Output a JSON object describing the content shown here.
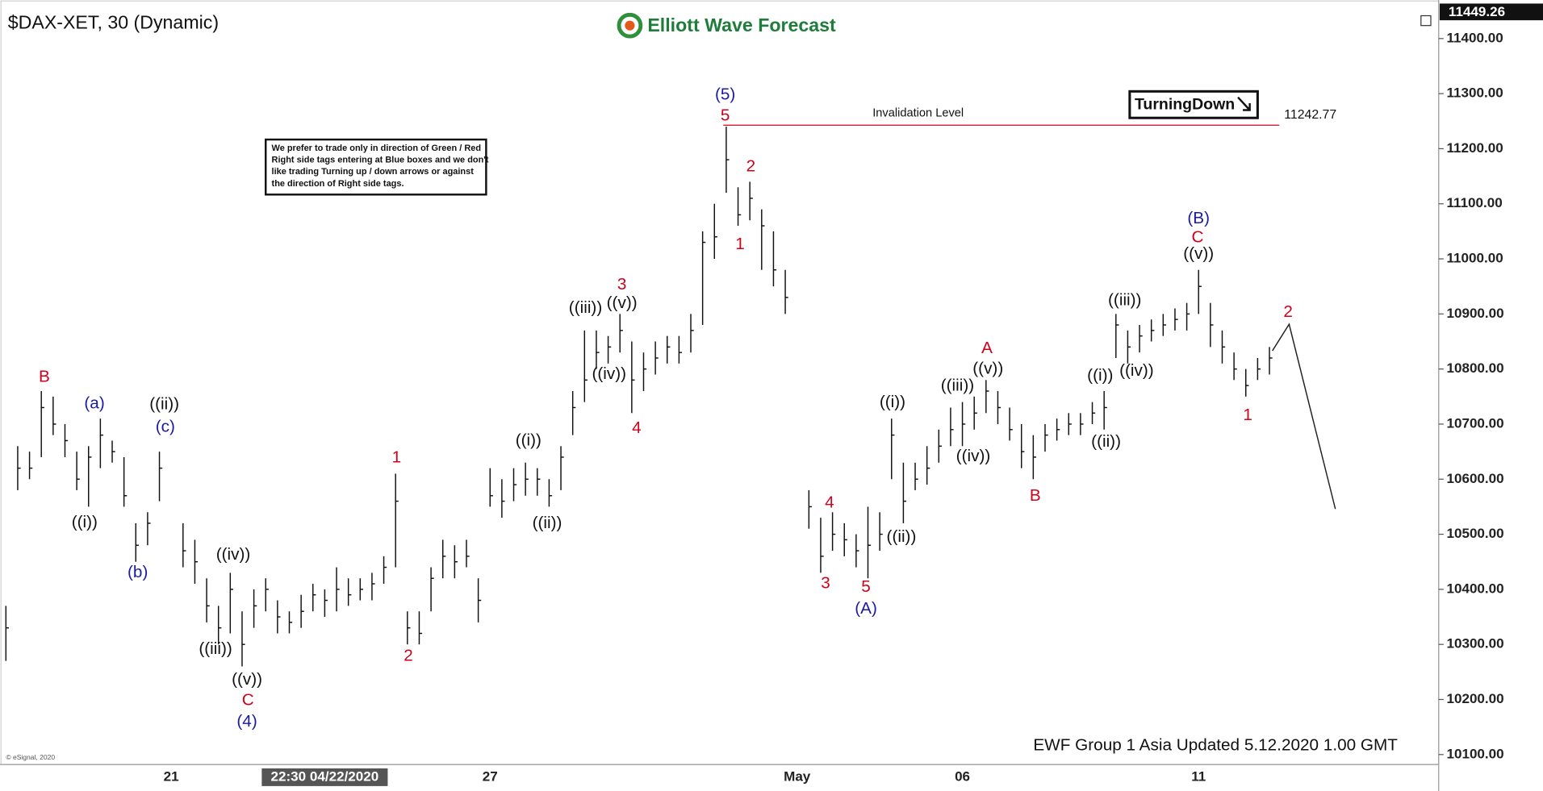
{
  "chart_data": {
    "type": "ohlc",
    "title": "$DAX-XET, 30 (Dynamic)",
    "brand": "Elliott Wave Forecast",
    "note": [
      "We prefer to trade only in direction of Green / Red",
      "Right side tags entering at Blue boxes and we don't",
      "like trading Turning up / down arrows or against",
      "the direction of Right side tags."
    ],
    "signal": "TurningDown",
    "footer": "EWF Group 1 Asia Updated 5.12.2020 1.00 GMT",
    "copyright": "© eSignal, 2020",
    "crosshair_label": "22:30 04/22/2020",
    "last_price": 11449.26,
    "invalidation_label": "Invalidation Level",
    "invalidation_level": 11242.77,
    "color": "#111111",
    "ylim": [
      10082,
      11470
    ],
    "yticks": [
      {
        "value": 11400,
        "label": "11400.00"
      },
      {
        "value": 11300,
        "label": "11300.00"
      },
      {
        "value": 11200,
        "label": "11200.00"
      },
      {
        "value": 11100,
        "label": "11100.00"
      },
      {
        "value": 11000,
        "label": "11000.00"
      },
      {
        "value": 10900,
        "label": "10900.00"
      },
      {
        "value": 10800,
        "label": "10800.00"
      },
      {
        "value": 10700,
        "label": "10700.00"
      },
      {
        "value": 10600,
        "label": "10600.00"
      },
      {
        "value": 10500,
        "label": "10500.00"
      },
      {
        "value": 10400,
        "label": "10400.00"
      },
      {
        "value": 10300,
        "label": "10300.00"
      },
      {
        "value": 10200,
        "label": "10200.00"
      },
      {
        "value": 10100,
        "label": "10100.00"
      }
    ],
    "categories": [
      null,
      null,
      null,
      null,
      null,
      null,
      null,
      null,
      null,
      null,
      null,
      null,
      null,
      null,
      "21",
      null,
      null,
      null,
      null,
      null,
      null,
      null,
      null,
      null,
      null,
      null,
      null,
      null,
      null,
      null,
      null,
      null,
      null,
      null,
      null,
      null,
      null,
      null,
      null,
      null,
      null,
      "27",
      null,
      null,
      null,
      null,
      null,
      null,
      null,
      null,
      null,
      null,
      null,
      null,
      null,
      null,
      null,
      null,
      null,
      null,
      null,
      null,
      null,
      null,
      null,
      null,
      null,
      "May",
      null,
      null,
      null,
      null,
      null,
      null,
      null,
      null,
      null,
      null,
      null,
      null,
      null,
      "06",
      null,
      null,
      null,
      null,
      null,
      null,
      null,
      null,
      null,
      null,
      null,
      null,
      null,
      null,
      null,
      null,
      null,
      null,
      null,
      "11",
      null,
      null,
      null,
      null,
      null,
      null
    ],
    "high": [
      10370,
      10660,
      10650,
      10760,
      10750,
      10700,
      10650,
      10660,
      10710,
      10670,
      10640,
      10520,
      10540,
      10650,
      null,
      10520,
      10490,
      10420,
      10370,
      10430,
      10360,
      10400,
      10420,
      10380,
      10360,
      10390,
      10410,
      10400,
      10440,
      10420,
      10420,
      10430,
      10460,
      10610,
      10360,
      10360,
      10440,
      10490,
      10480,
      10490,
      10420,
      10620,
      10600,
      10620,
      10630,
      10620,
      10600,
      10660,
      10760,
      10870,
      10870,
      10860,
      10900,
      10850,
      10830,
      10850,
      10860,
      10860,
      10900,
      11050,
      11100,
      11240,
      11130,
      11140,
      11090,
      11050,
      10980,
      null,
      10580,
      10530,
      10540,
      10520,
      10500,
      10550,
      10540,
      10710,
      10630,
      10630,
      10660,
      10690,
      10730,
      10740,
      10750,
      10780,
      10760,
      10730,
      10700,
      10680,
      10700,
      10710,
      10720,
      10720,
      10740,
      10760,
      10900,
      10870,
      10880,
      10890,
      10900,
      10910,
      10920,
      10980,
      10920,
      10870,
      10830,
      10800,
      10820,
      10840
    ],
    "low": [
      10270,
      10580,
      10600,
      10640,
      10680,
      10640,
      10580,
      10550,
      10620,
      10630,
      10550,
      10450,
      10480,
      10560,
      null,
      10440,
      10410,
      10340,
      10300,
      10320,
      10260,
      10330,
      10360,
      10320,
      10320,
      10330,
      10360,
      10350,
      10360,
      10370,
      10380,
      10380,
      10410,
      10440,
      10300,
      10300,
      10360,
      10420,
      10420,
      10440,
      10340,
      10550,
      10530,
      10560,
      10570,
      10570,
      10550,
      10580,
      10680,
      10740,
      10800,
      10810,
      10830,
      10720,
      10760,
      10790,
      10810,
      10810,
      10830,
      10880,
      11000,
      11120,
      11060,
      11070,
      10980,
      10950,
      10900,
      null,
      10510,
      10430,
      10470,
      10460,
      10440,
      10420,
      10470,
      10600,
      10520,
      10580,
      10590,
      10630,
      10660,
      10660,
      10690,
      10720,
      10700,
      10670,
      10620,
      10600,
      10650,
      10670,
      10680,
      10680,
      10700,
      10690,
      10820,
      10810,
      10830,
      10850,
      10860,
      10870,
      10870,
      10900,
      10840,
      10810,
      10780,
      10750,
      10780,
      10790
    ],
    "close": [
      10330,
      10620,
      10620,
      10730,
      10700,
      10670,
      10600,
      10640,
      10680,
      10650,
      10570,
      10480,
      10520,
      10620,
      null,
      10470,
      10450,
      10370,
      10330,
      10400,
      10300,
      10370,
      10400,
      10350,
      10340,
      10360,
      10390,
      10380,
      10400,
      10390,
      10400,
      10410,
      10440,
      10560,
      10330,
      10320,
      10420,
      10460,
      10450,
      10460,
      10380,
      10570,
      10560,
      10590,
      10600,
      10600,
      10570,
      10640,
      10730,
      10780,
      10830,
      10840,
      10870,
      10780,
      10800,
      10820,
      10840,
      10830,
      10870,
      11030,
      11040,
      11180,
      11080,
      11110,
      11060,
      10980,
      10930,
      null,
      10550,
      10460,
      10500,
      10490,
      10470,
      10480,
      10500,
      10680,
      10560,
      10600,
      10620,
      10660,
      10690,
      10700,
      10720,
      10760,
      10730,
      10690,
      10650,
      10640,
      10680,
      10690,
      10700,
      10700,
      10720,
      10730,
      10880,
      10840,
      10860,
      10870,
      10880,
      10890,
      10900,
      10950,
      10880,
      10840,
      10800,
      10770,
      10800,
      10820
    ],
    "annotations": [
      {
        "text": "B",
        "color": "#d0021b"
      },
      {
        "text": "(a)",
        "color": "#1a1aa6"
      },
      {
        "text": "((ii))",
        "color": "#111111"
      },
      {
        "text": "(c)",
        "color": "#1a1aa6"
      },
      {
        "text": "((i))",
        "color": "#111111"
      },
      {
        "text": "(b)",
        "color": "#1a1aa6"
      },
      {
        "text": "((iv))",
        "color": "#111111"
      },
      {
        "text": "((iii))",
        "color": "#111111"
      },
      {
        "text": "((v))",
        "color": "#111111"
      },
      {
        "text": "C",
        "color": "#d0021b"
      },
      {
        "text": "(4)",
        "color": "#1a1aa6"
      },
      {
        "text": "1",
        "color": "#d0021b"
      },
      {
        "text": "2",
        "color": "#d0021b"
      },
      {
        "text": "((i))",
        "color": "#111111"
      },
      {
        "text": "((ii))",
        "color": "#111111"
      },
      {
        "text": "((iii))",
        "color": "#111111"
      },
      {
        "text": "((v))",
        "color": "#111111"
      },
      {
        "text": "3",
        "color": "#d0021b"
      },
      {
        "text": "((iv))",
        "color": "#111111"
      },
      {
        "text": "4",
        "color": "#d0021b"
      },
      {
        "text": "(5)",
        "color": "#1a1aa6"
      },
      {
        "text": "5",
        "color": "#d0021b"
      },
      {
        "text": "2",
        "color": "#d0021b"
      },
      {
        "text": "1",
        "color": "#d0021b"
      },
      {
        "text": "4",
        "color": "#d0021b"
      },
      {
        "text": "3",
        "color": "#d0021b"
      },
      {
        "text": "5",
        "color": "#d0021b"
      },
      {
        "text": "(A)",
        "color": "#1a1aa6"
      },
      {
        "text": "((i))",
        "color": "#111111"
      },
      {
        "text": "((ii))",
        "color": "#111111"
      },
      {
        "text": "((iii))",
        "color": "#111111"
      },
      {
        "text": "((iv))",
        "color": "#111111"
      },
      {
        "text": "((v))",
        "color": "#111111"
      },
      {
        "text": "A",
        "color": "#d0021b"
      },
      {
        "text": "B",
        "color": "#d0021b"
      },
      {
        "text": "((i))",
        "color": "#111111"
      },
      {
        "text": "((ii))",
        "color": "#111111"
      },
      {
        "text": "((iii))",
        "color": "#111111"
      },
      {
        "text": "((iv))",
        "color": "#111111"
      },
      {
        "text": "(B)",
        "color": "#1a1aa6"
      },
      {
        "text": "C",
        "color": "#d0021b"
      },
      {
        "text": "((v))",
        "color": "#111111"
      },
      {
        "text": "2",
        "color": "#d0021b"
      },
      {
        "text": "1",
        "color": "#d0021b"
      }
    ]
  }
}
